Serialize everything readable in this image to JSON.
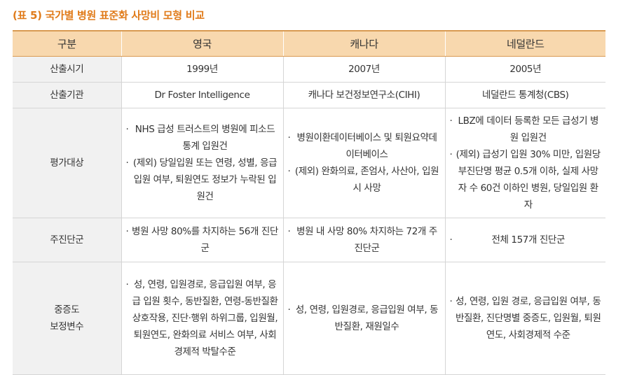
{
  "caption": "(표 5) 국가별 병원 표준화 사망비 모형 비교",
  "table": {
    "headers": [
      "구분",
      "영국",
      "캐나다",
      "네덜란드"
    ],
    "rows": {
      "year": {
        "label": "산출시기",
        "values": [
          "1999년",
          "2007년",
          "2005년"
        ]
      },
      "org": {
        "label": "산출기관",
        "values": [
          "Dr Foster Intelligence",
          "캐나다 보건정보연구소(CIHI)",
          "네덜란드 통계청(CBS)"
        ]
      },
      "target": {
        "label": "평가대상",
        "uk": [
          "NHS 급성 트러스트의 병원에 피소드통계 입원건",
          "(제외) 당일입원 또는 연령, 성별, 응급입원 여부, 퇴원연도 정보가 누락된 입원건"
        ],
        "ca": [
          "병원이환데이터베이스 및 퇴원요약데이터베이스",
          "(제외) 완화의료, 존엄사, 사산아, 입원 시 사망"
        ],
        "nl": [
          "LBZ에 데이터 등록한 모든 급성기 병원 입원건",
          "(제외) 급성기 입원 30% 미만, 입원당 부진단명 평균 0.5개 이하, 실제 사망자 수 60건 이하인 병원, 당일입원 환자"
        ]
      },
      "dx": {
        "label": "주진단군",
        "uk": [
          "병원 사망 80%를 차지하는 56개 진단군"
        ],
        "ca": [
          "병원 내 사망 80% 차지하는 72개 주진단군"
        ],
        "nl": [
          "전체 157개 진단군"
        ]
      },
      "severity": {
        "label_line1": "중증도",
        "label_line2": "보정변수",
        "uk": [
          "성, 연령, 입원경로, 응급입원 여부, 응급 입원 횟수, 동반질환, 연령-동반질환 상호작용, 진단·행위 하위그룹, 입원월, 퇴원연도, 완화의료 서비스 여부, 사회 경제적 박탈수준"
        ],
        "ca": [
          "성, 연령, 입원경로, 응급입원 여부, 동반질환, 재원일수"
        ],
        "nl": [
          "성, 연령, 입원 경로, 응급입원 여부, 동반질환, 진단명별 중증도, 입원월, 퇴원연도, 사회경제적 수준"
        ]
      }
    }
  }
}
